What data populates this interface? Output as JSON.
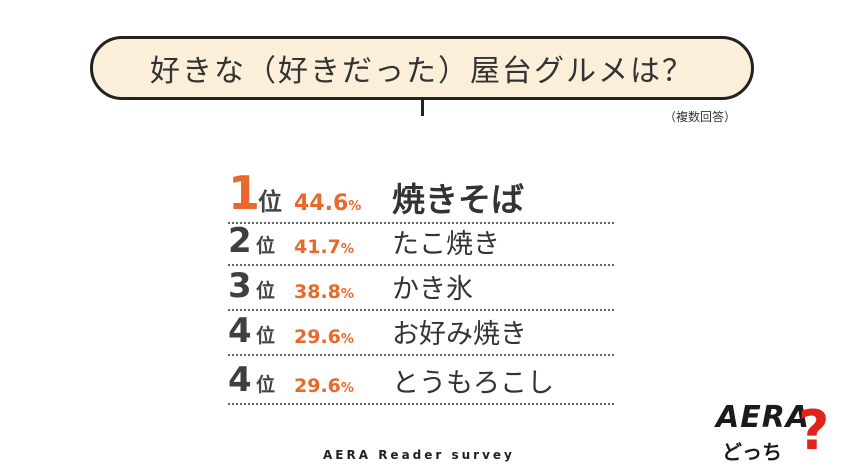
{
  "question": "好きな（好きだった）屋台グルメは？",
  "note": "（複数回答）",
  "rank_unit": "位",
  "chart_data": {
    "type": "table",
    "columns": [
      "rank",
      "percent",
      "item"
    ],
    "rows": [
      {
        "rank": "1",
        "percent": "44.6",
        "item": "焼きそば"
      },
      {
        "rank": "2",
        "percent": "41.7",
        "item": "たこ焼き"
      },
      {
        "rank": "3",
        "percent": "38.8",
        "item": "かき氷"
      },
      {
        "rank": "4",
        "percent": "29.6",
        "item": "お好み焼き"
      },
      {
        "rank": "4",
        "percent": "29.6",
        "item": "とうもろこし"
      }
    ],
    "percent_sign": "%"
  },
  "footer": "AERA Reader survey",
  "logo": {
    "text": "AERA",
    "sub": "どっち",
    "mark": "?"
  },
  "colors": {
    "accent": "#e8692b",
    "bubble": "#fcefd9",
    "logo_mark": "#e2231a"
  }
}
